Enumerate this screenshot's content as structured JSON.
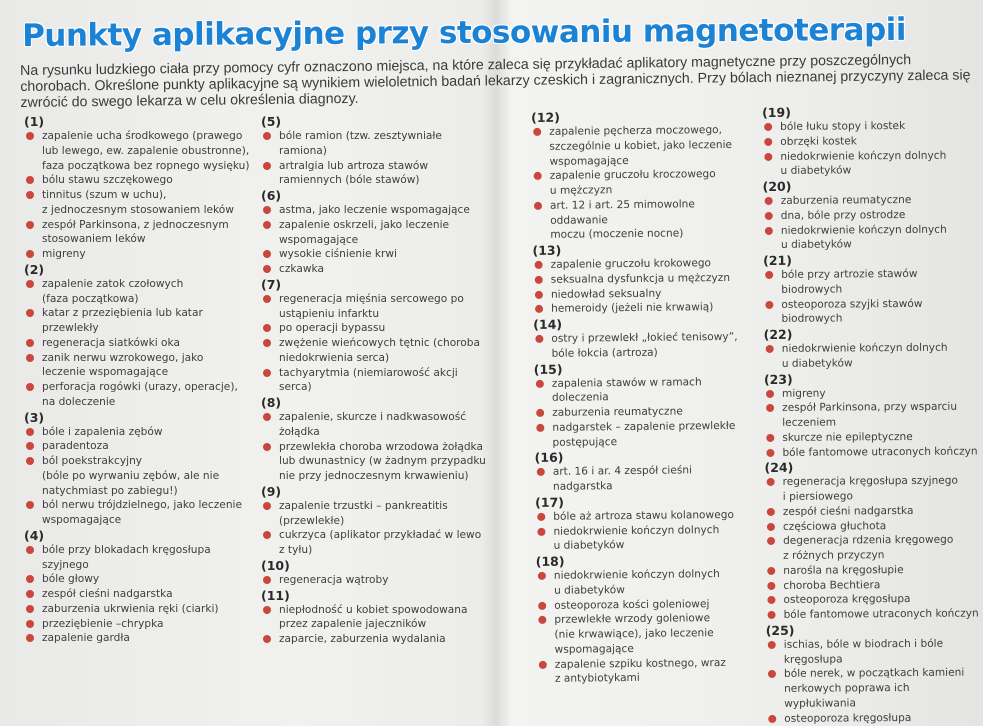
{
  "title": "Punkty aplikacyjne przy stosowaniu magnetoterapii",
  "intro": "Na rysunku ludzkiego ciała przy pomocy cyfr oznaczono miejsca, na które zaleca się przykładać aplikatory magnetyczne przy poszczególnych chorobach. Określone punkty aplikacyjne są wynikiem wieloletnich badań lekarzy czeskich i zagranicznych. Przy bólach nieznanej przyczyny zaleca się zwrócić do swego lekarza w celu określenia diagnozy.",
  "colors": {
    "title": "#1c82d4",
    "bullet": "#c9473d"
  },
  "bullet_icon": "red-dot",
  "columns": [
    [
      {
        "num": "(1)",
        "items": [
          "zapalenie ucha środkowego (prawego\nlub lewego, ew. zapalenie obustronne),\nfaza początkowa bez ropnego wysięku)",
          "bólu stawu szczękowego",
          "tinnitus (szum w uchu),\nz jednoczesnym stosowaniem leków",
          "zespół Parkinsona, z jednoczesnym\nstosowaniem leków",
          "migreny"
        ]
      },
      {
        "num": "(2)",
        "items": [
          "zapalenie zatok czołowych\n(faza początkowa)",
          "katar z przeziębienia lub katar\nprzewlekły",
          "regeneracja siatkówki oka",
          "zanik nerwu wzrokowego, jako\nleczenie wspomagające",
          "perforacja rogówki (urazy, operacje),\nna doleczenie"
        ]
      },
      {
        "num": "(3)",
        "items": [
          "bóle i zapalenia zębów",
          "paradentoza",
          "ból poekstrakcyjny\n(bóle po wyrwaniu zębów, ale nie\nnatychmiast po zabiegu!)",
          "ból nerwu trójdzielnego, jako leczenie\nwspomagające"
        ]
      },
      {
        "num": "(4)",
        "items": [
          "bóle przy blokadach kręgosłupa\nszyjnego",
          "bóle głowy",
          "zespół cieśni nadgarstka",
          "zaburzenia ukrwienia ręki (ciarki)",
          "przeziębienie –chrypka",
          "zapalenie gardła"
        ]
      }
    ],
    [
      {
        "num": "(5)",
        "items": [
          "bóle ramion (tzw. zesztywniałe\nramiona)",
          "artralgia lub artroza stawów\nramiennych (bóle stawów)"
        ]
      },
      {
        "num": "(6)",
        "items": [
          "astma, jako leczenie wspomagające",
          "zapalenie oskrzeli, jako leczenie\nwspomagające",
          "wysokie ciśnienie krwi",
          "czkawka"
        ]
      },
      {
        "num": "(7)",
        "items": [
          "regeneracja mięśnia sercowego po\nustąpieniu infarktu",
          "po operacji bypassu",
          "zwężenie wieńcowych tętnic (choroba\nniedokrwienia serca)",
          "tachyarytmia (niemiarowość akcji\nserca)"
        ]
      },
      {
        "num": "(8)",
        "items": [
          "zapalenie, skurcze i nadkwasowość\nżołądka",
          "przewlekła choroba wrzodowa żołądka\nlub dwunastnicy (w żadnym przypadku\nnie przy jednoczesnym krwawieniu)"
        ]
      },
      {
        "num": "(9)",
        "items": [
          "zapalenie trzustki – pankreatitis\n(przewlekłe)",
          "cukrzyca (aplikator przykładać w lewo\nz tyłu)"
        ]
      },
      {
        "num": "(10)",
        "items": [
          "regeneracja wątroby"
        ]
      },
      {
        "num": "(11)",
        "items": [
          "niepłodność u kobiet spowodowana\nprzez zapalenie jajeczników",
          "zaparcie, zaburzenia wydalania"
        ]
      }
    ],
    [
      {
        "num": "(12)",
        "items": [
          "zapalenie pęcherza moczowego,\nszczególnie u kobiet, jako leczenie\nwspomagające",
          "zapalenie gruczołu kroczowego\nu mężczyzn",
          "art. 12 i art. 25 mimowolne oddawanie\nmoczu (moczenie nocne)"
        ]
      },
      {
        "num": "(13)",
        "items": [
          "zapalenie gruczołu krokowego",
          "seksualna dysfunkcja u mężczyzn",
          "niedowład seksualny",
          "hemeroidy (jeżeli nie krwawią)"
        ]
      },
      {
        "num": "(14)",
        "items": [
          "ostry i przewlekł „łokieć tenisowy”,\nbóle łokcia (artroza)"
        ]
      },
      {
        "num": "(15)",
        "items": [
          "zapalenia stawów w ramach doleczenia",
          "zaburzenia reumatyczne",
          "nadgarstek – zapalenie przewlekłe\npostępujące"
        ]
      },
      {
        "num": "(16)",
        "items": [
          "art. 16 i ar. 4 zespół cieśni nadgarstka"
        ]
      },
      {
        "num": "(17)",
        "items": [
          "bóle aż artroza stawu kolanowego",
          "niedokrwienie kończyn dolnych\nu diabetyków"
        ]
      },
      {
        "num": "(18)",
        "items": [
          "niedokrwienie kończyn dolnych\nu diabetyków",
          "osteoporoza kości goleniowej",
          "przewlekłe wrzody goleniowe\n(nie krwawiące), jako leczenie\nwspomagające",
          "zapalenie szpiku kostnego, wraz\nz antybiotykami"
        ]
      }
    ],
    [
      {
        "num": "(19)",
        "items": [
          "bóle łuku stopy i kostek",
          "obrzęki kostek",
          "niedokrwienie kończyn dolnych\nu diabetyków"
        ]
      },
      {
        "num": "(20)",
        "items": [
          "zaburzenia reumatyczne",
          "dna, bóle przy ostrodze",
          "niedokrwienie kończyn dolnych\nu diabetyków"
        ]
      },
      {
        "num": "(21)",
        "items": [
          "bóle przy artrozie stawów biodrowych",
          "osteoporoza szyjki stawów biodrowych"
        ]
      },
      {
        "num": "(22)",
        "items": [
          "niedokrwienie kończyn dolnych\nu diabetyków"
        ]
      },
      {
        "num": "(23)",
        "items": [
          "migreny",
          "zespół Parkinsona, przy wsparciu\nleczeniem",
          "skurcze nie epileptyczne",
          "bóle fantomowe utraconych kończyn"
        ]
      },
      {
        "num": "(24)",
        "items": [
          "regeneracja kręgosłupa szyjnego\ni piersiowego",
          "zespół cieśni nadgarstka",
          "częściowa głuchota",
          "degeneracja rdzenia kręgowego\nz różnych przyczyn",
          "narośla na kręgosłupie",
          "choroba Bechtiera",
          "osteoporoza kręgosłupa",
          "bóle fantomowe utraconych kończyn"
        ]
      },
      {
        "num": "(25)",
        "items": [
          "ischias, bóle w biodrach i bóle kręgosłupa",
          "bóle nerek, w początkach kamieni\nnerkowych poprawa ich wypłukiwania",
          "osteoporoza kręgosłupa"
        ]
      }
    ]
  ]
}
